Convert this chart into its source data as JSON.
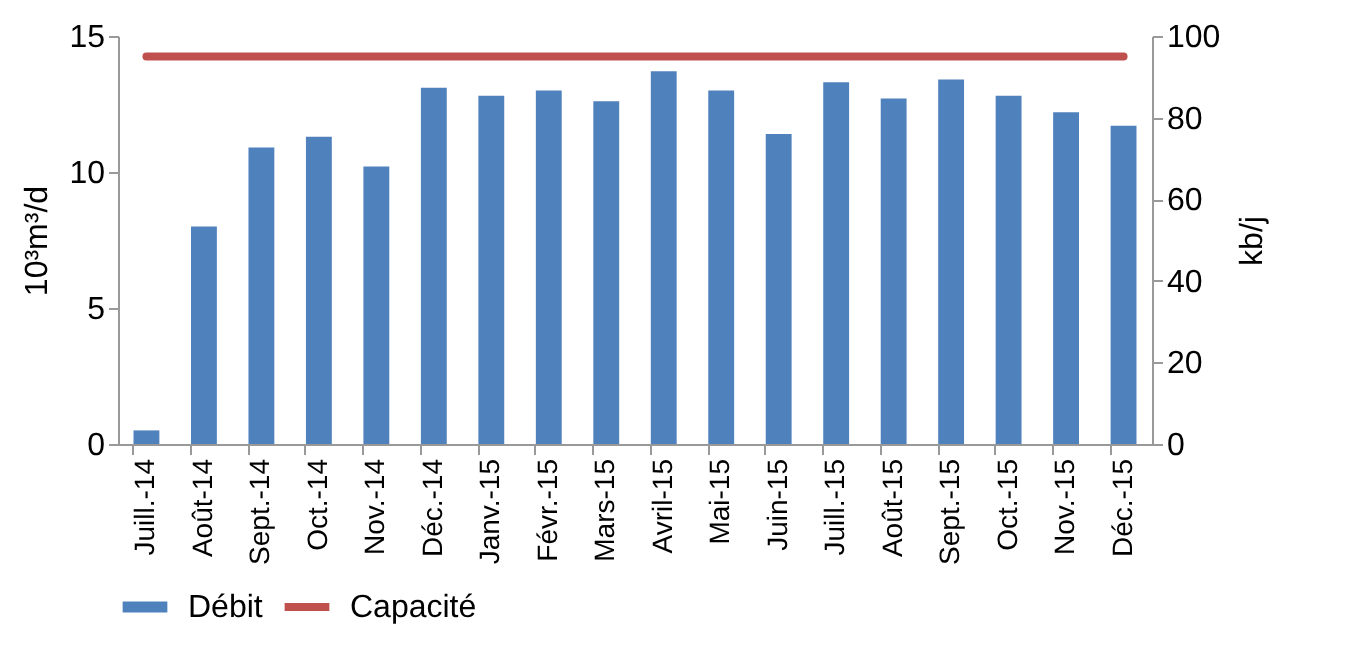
{
  "chart_data": {
    "type": "bar",
    "categories": [
      "Juill.-14",
      "Août-14",
      "Sept.-14",
      "Oct.-14",
      "Nov.-14",
      "Déc.-14",
      "Janv.-15",
      "Févr.-15",
      "Mars-15",
      "Avril-15",
      "Mai-15",
      "Juin-15",
      "Juill.-15",
      "Août-15",
      "Sept.-15",
      "Oct.-15",
      "Nov.-15",
      "Déc.-15"
    ],
    "series": [
      {
        "name": "Débit",
        "color": "#4f81bd",
        "values": [
          0.5,
          8.0,
          10.9,
          11.3,
          10.2,
          13.1,
          12.8,
          13.0,
          12.6,
          13.7,
          13.0,
          11.4,
          13.3,
          12.7,
          13.4,
          12.8,
          12.2,
          11.7
        ]
      },
      {
        "name": "Capacité",
        "type": "line",
        "axis": "y2",
        "color": "#c0504d",
        "values": [
          95,
          95,
          95,
          95,
          95,
          95,
          95,
          95,
          95,
          95,
          95,
          95,
          95,
          95,
          95,
          95,
          95,
          95
        ]
      }
    ],
    "ylabel": "10³m³/d",
    "y2label": "kb/j",
    "ylim": [
      0,
      15
    ],
    "yticks": [
      0,
      5,
      10,
      15
    ],
    "y2lim": [
      0,
      100
    ],
    "y2ticks": [
      0,
      20,
      40,
      60,
      80,
      100
    ],
    "grid": false,
    "legend": "bottom"
  }
}
